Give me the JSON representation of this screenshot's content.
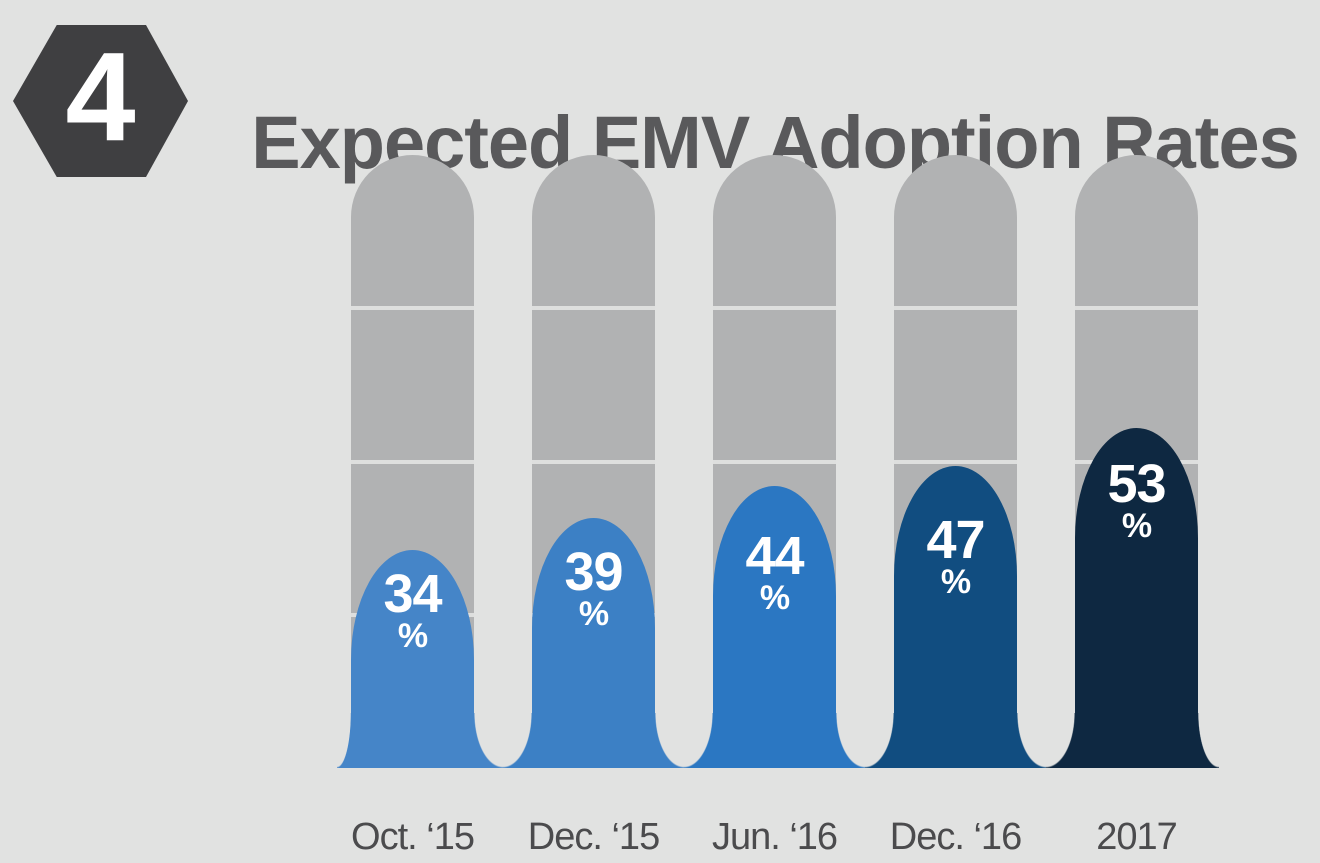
{
  "badge": {
    "number": "4",
    "color": "#3f3f41"
  },
  "title": "Expected EMV Adoption Rates",
  "chart_data": {
    "type": "bar",
    "title": "Expected EMV Adoption Rates",
    "categories": [
      "Oct. ‘15",
      "Dec. ‘15",
      "Jun. ‘16",
      "Dec. ‘16",
      "2017"
    ],
    "values": [
      34,
      39,
      44,
      47,
      53
    ],
    "unit": "%",
    "ylim": [
      0,
      100
    ],
    "xlabel": "",
    "ylabel": "",
    "legend": null,
    "grid": "track divided into 4 equal segments",
    "track_segments": 4,
    "bar_colors": [
      "#4585c8",
      "#3c80c5",
      "#2b77c2",
      "#114d80",
      "#0e2841"
    ],
    "track_color": "#b1b2b3",
    "divider_color": "#dedfde",
    "background_color": "#e1e2e1",
    "value_label_color": "#ffffff",
    "category_label_color": "#4b4b4d",
    "title_color": "#59595b"
  }
}
